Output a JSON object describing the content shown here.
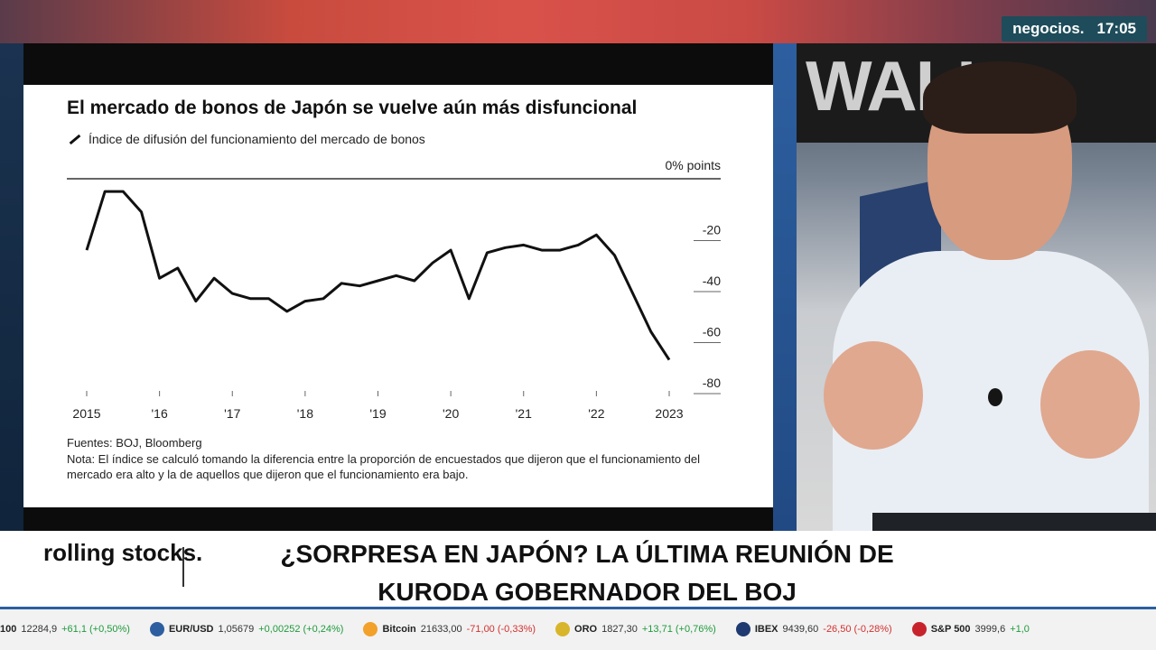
{
  "channel": {
    "brand": "negocios.",
    "time": "17:05"
  },
  "chart_data": {
    "type": "line",
    "title": "El mercado de bonos de Japón se vuelve aún más disfuncional",
    "legend": "Índice de difusión del funcionamiento del mercado de bonos",
    "y_unit_label": "0% points",
    "y_ticks": [
      "-20",
      "-40",
      "-60",
      "-80"
    ],
    "x_tick_labels": [
      "2015",
      "'16",
      "'17",
      "'18",
      "'19",
      "'20",
      "'21",
      "'22",
      "2023"
    ],
    "ylim": [
      -80,
      0
    ],
    "xlim": [
      2015,
      2023
    ],
    "series": [
      {
        "x": [
          2015.0,
          2015.25,
          2015.5,
          2015.75,
          2016.0,
          2016.25,
          2016.5,
          2016.75,
          2017.0,
          2017.25,
          2017.5,
          2017.75,
          2018.0,
          2018.25,
          2018.5,
          2018.75,
          2019.0,
          2019.25,
          2019.5,
          2019.75,
          2020.0,
          2020.25,
          2020.5,
          2020.75,
          2021.0,
          2021.25,
          2021.5,
          2021.75,
          2022.0,
          2022.25,
          2022.5,
          2022.75,
          2023.0
        ],
        "y": [
          -28,
          -5,
          -5,
          -13,
          -39,
          -35,
          -48,
          -39,
          -45,
          -47,
          -47,
          -52,
          -48,
          -47,
          -41,
          -42,
          -40,
          -38,
          -40,
          -33,
          -28,
          -47,
          -29,
          -27,
          -26,
          -28,
          -28,
          -26,
          -22,
          -30,
          -45,
          -60,
          -71
        ]
      }
    ]
  },
  "source": "Fuentes: BOJ, Bloomberg",
  "note": "Nota: El índice se calculó tomando la diferencia entre la proporción de encuestados que dijeron que el funcionamiento del mercado era alto y la de aquellos que dijeron que el funcionamiento era bajo.",
  "video": {
    "wall_text": "WALL"
  },
  "lower_third": {
    "show": "rolling stocks.",
    "headline": "¿SORPRESA EN JAPÓN? LA ÚLTIMA REUNIÓN DE KURODA GOBERNADOR DEL BOJ"
  },
  "ticker": [
    {
      "name": "100",
      "value": "12284,9",
      "change": "+61,1 (+0,50%)",
      "dir": "pos",
      "icon": "",
      "icon_color": ""
    },
    {
      "name": "EUR/USD",
      "value": "1,05679",
      "change": "+0,00252 (+0,24%)",
      "dir": "pos",
      "icon": "currency-icon",
      "icon_color": "#2d5fa0"
    },
    {
      "name": "Bitcoin",
      "value": "21633,00",
      "change": "-71,00 (-0,33%)",
      "dir": "neg",
      "icon": "bitcoin-icon",
      "icon_color": "#f2a12a"
    },
    {
      "name": "ORO",
      "value": "1827,30",
      "change": "+13,71 (+0,76%)",
      "dir": "pos",
      "icon": "gold-icon",
      "icon_color": "#d8b52a"
    },
    {
      "name": "IBEX",
      "value": "9439,60",
      "change": "-26,50 (-0,28%)",
      "dir": "neg",
      "icon": "index-icon",
      "icon_color": "#1e3a70"
    },
    {
      "name": "S&P 500",
      "value": "3999,6",
      "change": "+1,0",
      "dir": "pos",
      "icon": "sp500-icon",
      "icon_color": "#c8232c"
    }
  ]
}
